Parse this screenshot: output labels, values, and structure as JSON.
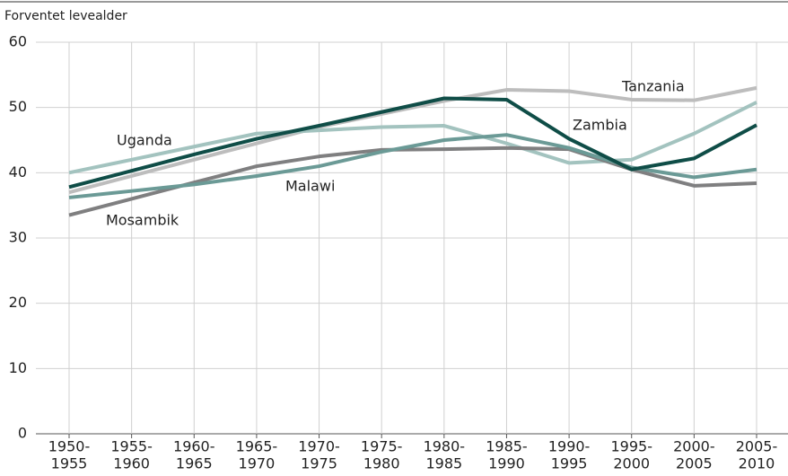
{
  "chart_data": {
    "type": "line",
    "y_label": "Forventet levealder",
    "categories": [
      [
        "1950-",
        "1955"
      ],
      [
        "1955-",
        "1960"
      ],
      [
        "1960-",
        "1965"
      ],
      [
        "1965-",
        "1970"
      ],
      [
        "1970-",
        "1975"
      ],
      [
        "1975-",
        "1980"
      ],
      [
        "1980-",
        "1985"
      ],
      [
        "1985-",
        "1990"
      ],
      [
        "1990-",
        "1995"
      ],
      [
        "1995-",
        "2000"
      ],
      [
        "2000-",
        "2005"
      ],
      [
        "2005-",
        "2010"
      ]
    ],
    "series": [
      {
        "name": "Tanzania",
        "color": "#bdbdbd",
        "values": [
          37.0,
          39.5,
          42.0,
          44.5,
          47.0,
          49.0,
          51.0,
          52.7,
          52.5,
          51.2,
          51.1,
          53.0
        ]
      },
      {
        "name": "Uganda",
        "color": "#a3c3bf",
        "values": [
          40.0,
          42.0,
          44.0,
          46.0,
          46.5,
          47.0,
          47.2,
          44.5,
          41.5,
          42.0,
          46.0,
          50.8
        ]
      },
      {
        "name": "Mosambik",
        "color": "#7f7f80",
        "values": [
          33.5,
          36.0,
          38.5,
          41.0,
          42.5,
          43.5,
          43.6,
          43.8,
          43.6,
          40.5,
          38.0,
          38.4
        ]
      },
      {
        "name": "Malawi",
        "color": "#6b9a96",
        "values": [
          36.2,
          37.2,
          38.2,
          39.5,
          41.0,
          43.2,
          45.0,
          45.8,
          43.8,
          40.8,
          39.3,
          40.5
        ]
      },
      {
        "name": "Zambia",
        "color": "#0f4d47",
        "values": [
          37.8,
          40.3,
          42.8,
          45.2,
          47.2,
          49.3,
          51.4,
          51.2,
          45.2,
          40.5,
          42.2,
          47.3
        ]
      }
    ],
    "ylim": [
      0,
      60
    ],
    "yticks": [
      0,
      10,
      20,
      30,
      40,
      50,
      60
    ],
    "grid": true
  }
}
